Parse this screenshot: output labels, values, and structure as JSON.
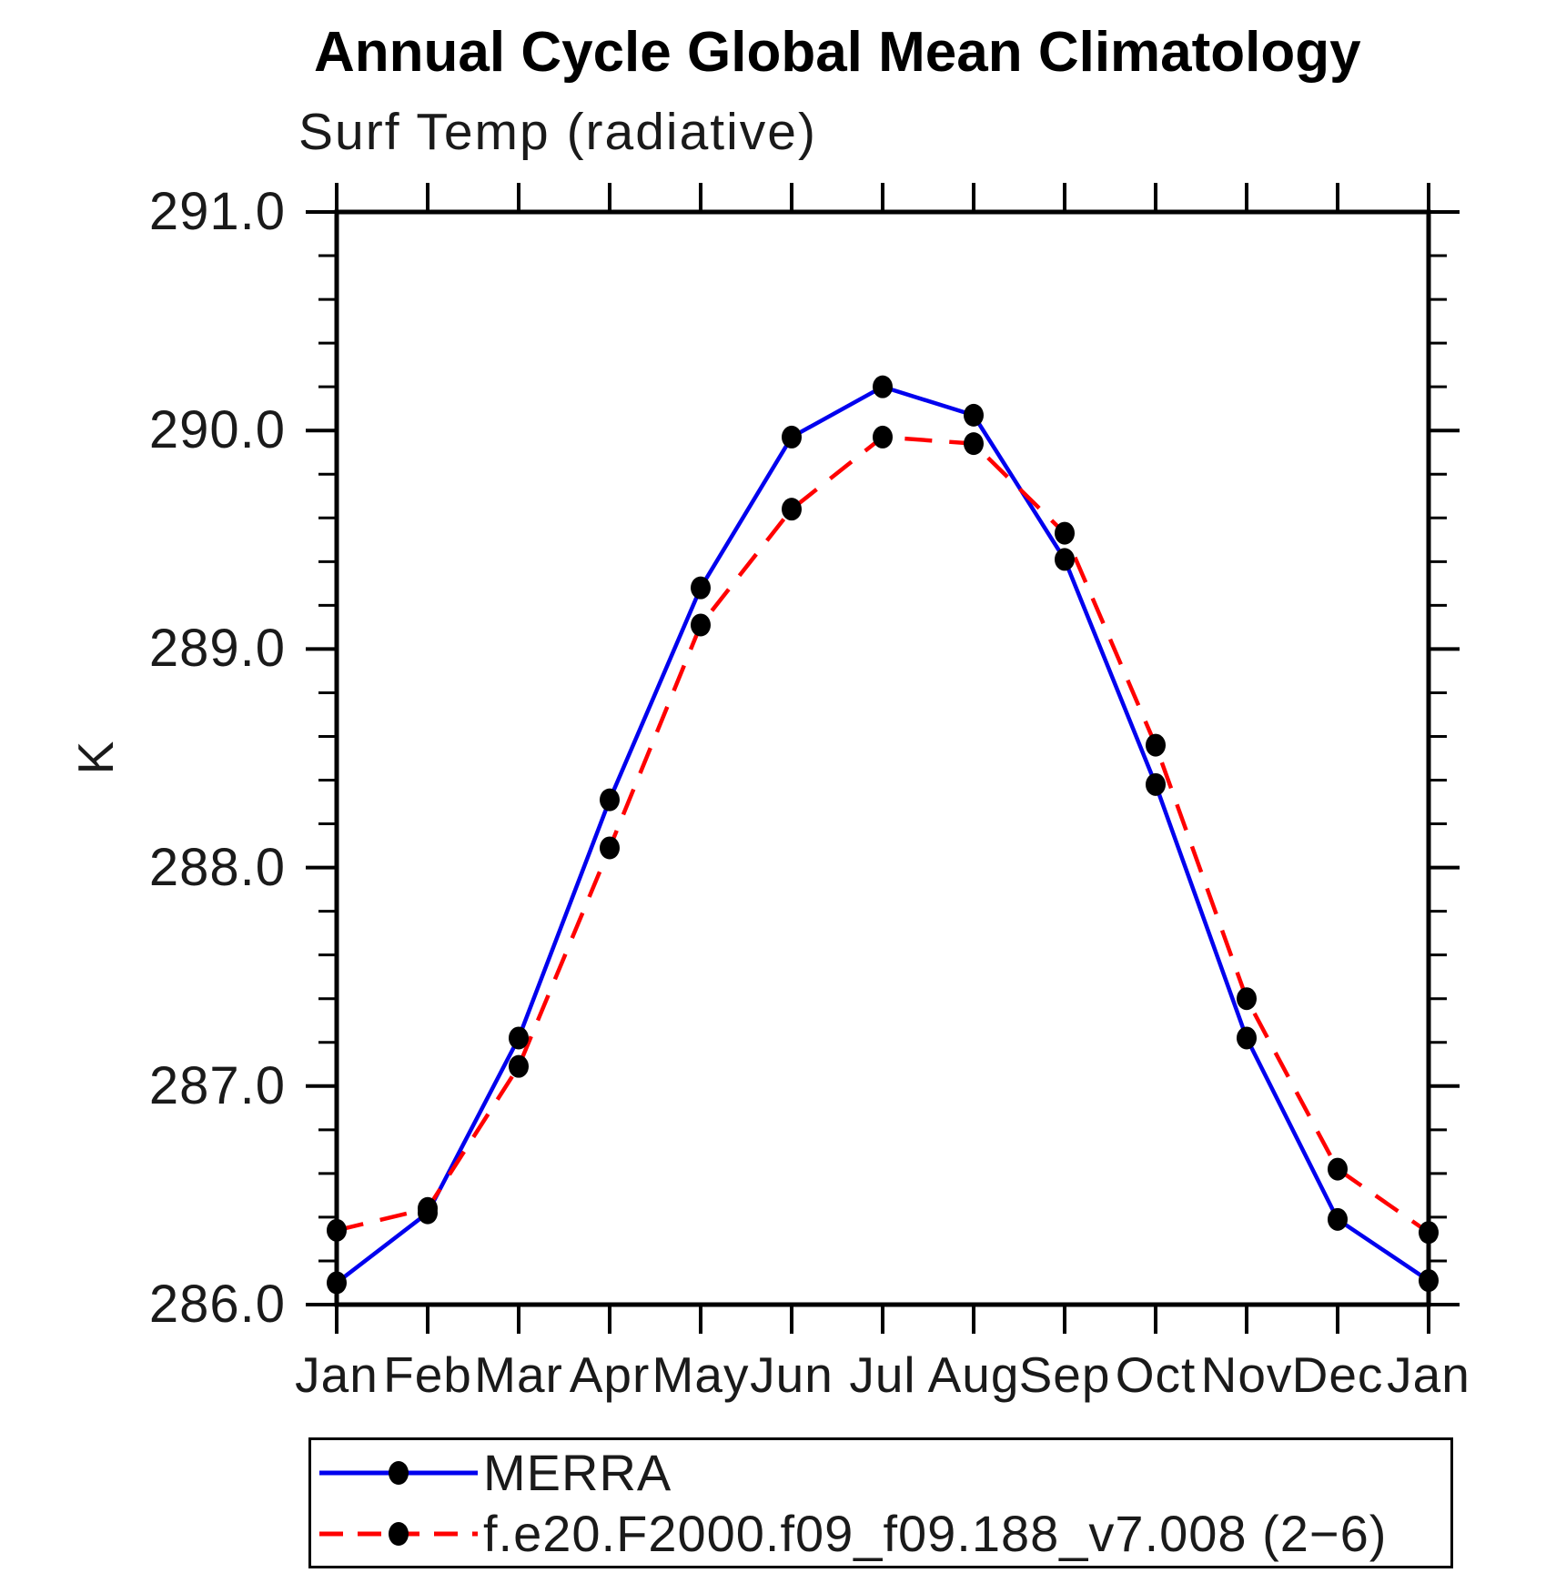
{
  "chart_data": {
    "type": "line",
    "title": "Annual Cycle Global Mean Climatology",
    "subtitle": "Surf Temp (radiative)",
    "ylabel": "K",
    "xlabel": "",
    "categories": [
      "Jan",
      "Feb",
      "Mar",
      "Apr",
      "May",
      "Jun",
      "Jul",
      "Aug",
      "Sep",
      "Oct",
      "Nov",
      "Dec",
      "Jan"
    ],
    "ylim": [
      286.0,
      291.0
    ],
    "ytick_labels": [
      "286.0",
      "287.0",
      "288.0",
      "289.0",
      "290.0",
      "291.0"
    ],
    "ytick_major_step": 1.0,
    "ytick_minor_step": 0.2,
    "grid": false,
    "legend_position": "bottom-left",
    "frame_color": "#000000",
    "marker_color": "#000000",
    "series": [
      {
        "name": "MERRA",
        "color": "#0000ee",
        "line_style": "solid",
        "marker": "circle",
        "values": [
          286.1,
          286.42,
          287.22,
          288.31,
          289.28,
          289.97,
          290.2,
          290.07,
          289.41,
          288.38,
          287.22,
          286.39,
          286.11
        ]
      },
      {
        "name": "f.e20.F2000.f09_f09.188_v7.008 (2−6)",
        "color": "#ff0000",
        "line_style": "dashed",
        "marker": "circle",
        "values": [
          286.34,
          286.44,
          287.09,
          288.09,
          289.11,
          289.64,
          289.97,
          289.94,
          289.53,
          288.56,
          287.4,
          286.62,
          286.33
        ]
      }
    ]
  }
}
